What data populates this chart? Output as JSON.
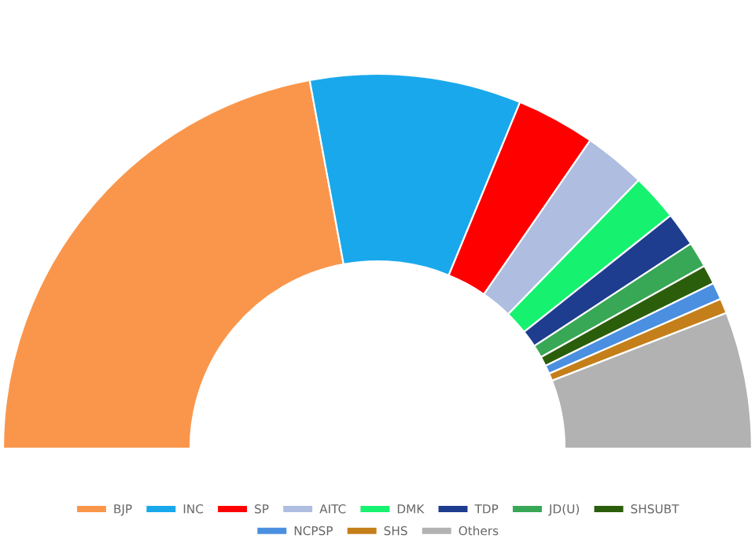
{
  "chart_data": {
    "type": "donut",
    "categories": [
      "BJP",
      "INC",
      "SP",
      "AITC",
      "DMK",
      "TDP",
      "JD(U)",
      "SHSUBT",
      "NCPSP",
      "SHS",
      "Others"
    ],
    "values": [
      44.2,
      18.23,
      6.81,
      5.34,
      4.05,
      2.95,
      2.21,
      1.66,
      1.47,
      1.29,
      11.79
    ],
    "colors": [
      "#fa964b",
      "#1aa8ec",
      "#ff0000",
      "#aebde0",
      "#16f26f",
      "#1f3d8f",
      "#38a857",
      "#2b5e0b",
      "#4a8fe0",
      "#c47f1a",
      "#b2b2b2"
    ],
    "legend": "bottom"
  }
}
